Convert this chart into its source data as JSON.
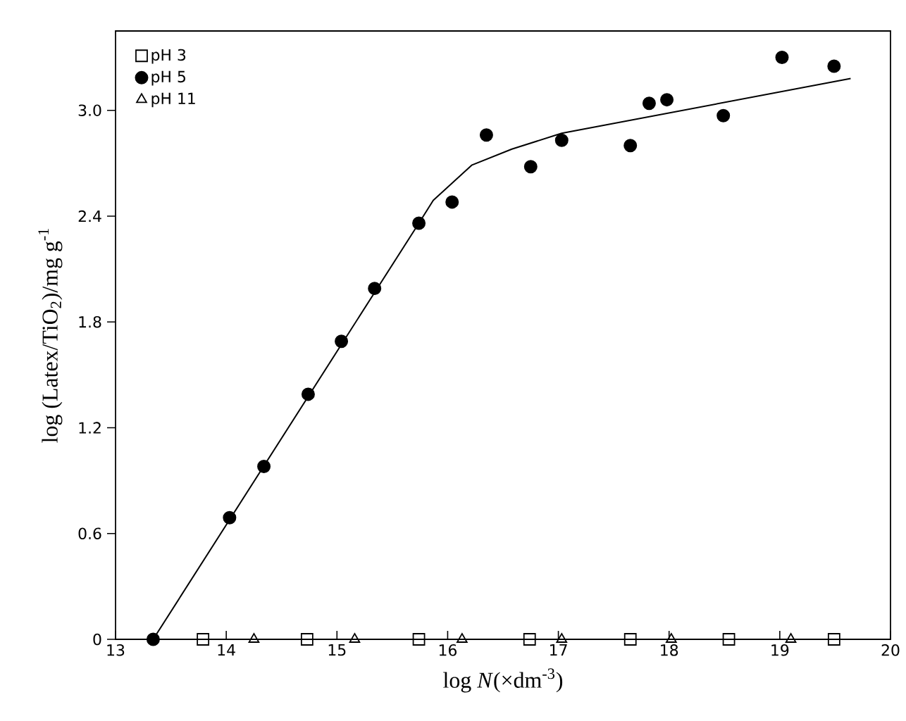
{
  "chart_data": {
    "type": "scatter",
    "xlabel": "log *N*(×dm$^{-3}$)",
    "ylabel": "log (Latex/TiO$_{2}$)/mg g$^{-1}$",
    "xlim": [
      13,
      20
    ],
    "ylim": [
      0,
      3.45
    ],
    "xticks": [
      13,
      14,
      15,
      16,
      17,
      18,
      19,
      20
    ],
    "yticks": [
      0,
      0.6,
      1.2,
      1.8,
      2.4,
      {
        "value": 3,
        "label": "3.0"
      }
    ],
    "legend": "top left",
    "grid": false,
    "series": [
      {
        "name": "pH 3",
        "color": "#000000",
        "marker": "square",
        "x": [
          13.79,
          14.73,
          15.74,
          16.74,
          17.65,
          18.54,
          19.49
        ],
        "values": [
          0,
          0,
          0,
          0,
          0,
          0,
          0
        ]
      },
      {
        "name": "pH 5",
        "color": "#000000",
        "marker": "circle",
        "x": [
          13.34,
          14.03,
          14.34,
          14.74,
          15.04,
          15.34,
          15.74,
          16.04,
          16.35,
          16.75,
          17.03,
          17.65,
          17.82,
          17.98,
          18.49,
          19.02,
          19.49
        ],
        "values": [
          0,
          0.69,
          0.98,
          1.39,
          1.69,
          1.99,
          2.36,
          2.48,
          2.86,
          2.68,
          2.83,
          2.8,
          3.04,
          3.06,
          2.97,
          3.3,
          3.25
        ]
      },
      {
        "name": "pH 11",
        "color": "#000000",
        "marker": "triangle",
        "x": [
          14.25,
          15.16,
          16.13,
          17.03,
          18.02,
          19.1
        ],
        "values": [
          0,
          0,
          0,
          0,
          0,
          0
        ]
      },
      {
        "type": "line",
        "color": "#000000",
        "marker": "none",
        "x": [
          13.34,
          15.74,
          15.87,
          16.22,
          16.58,
          17.03,
          19.64
        ],
        "values": [
          0,
          2.36,
          2.49,
          2.69,
          2.78,
          2.87,
          3.18
        ]
      }
    ]
  }
}
